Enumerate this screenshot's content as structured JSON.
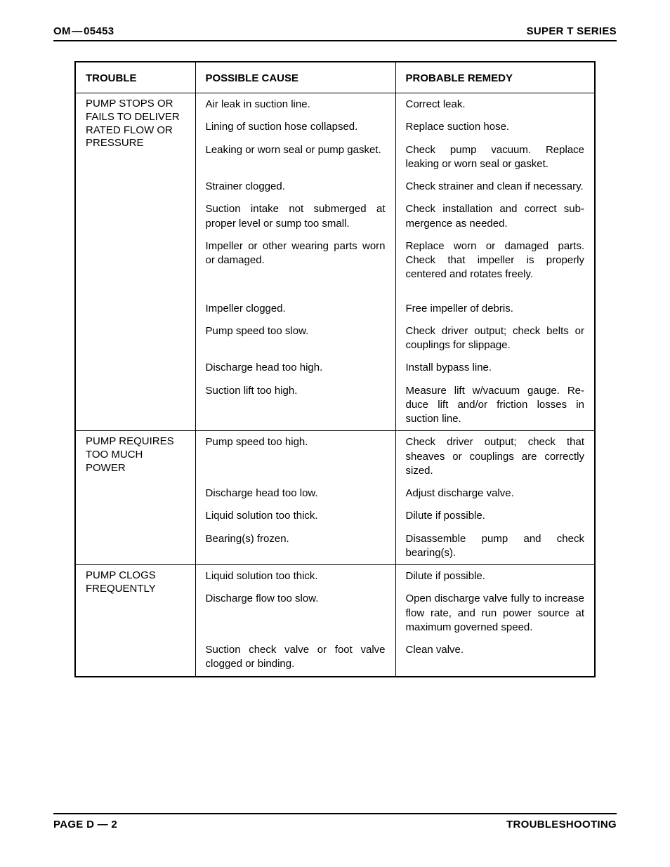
{
  "header": {
    "left": "OM — 05453",
    "right": "SUPER T SERIES"
  },
  "columns": {
    "trouble": "TROUBLE",
    "cause": "POSSIBLE CAUSE",
    "remedy": "PROBABLE REMEDY"
  },
  "sections": [
    {
      "trouble": "PUMP STOPS OR FAILS TO DELIVER RATED FLOW OR PRESSURE",
      "rows": [
        {
          "cause": "Air leak in suction line.",
          "remedy": "Correct leak."
        },
        {
          "cause": "Lining of suction hose collapsed.",
          "remedy": "Replace suction hose."
        },
        {
          "cause": "Leaking or worn seal or pump gasket.",
          "remedy": "Check pump vacuum. Replace leaking or worn seal or gasket."
        },
        {
          "cause": "Strainer clogged.",
          "remedy": "Check strainer and clean if neces­sary."
        },
        {
          "cause": "Suction intake not submerged at proper level or sump too small.",
          "remedy": "Check installation and correct sub­mergence as needed."
        },
        {
          "cause": "Impeller or other wearing parts worn or damaged.",
          "remedy": "Replace worn or damaged parts. Check that impeller is properly centered and rotates freely.",
          "gap": true
        },
        {
          "cause": "Impeller clogged.",
          "remedy": "Free impeller of debris."
        },
        {
          "cause": "Pump speed too slow.",
          "remedy": "Check driver output; check belts or couplings for slippage."
        },
        {
          "cause": "Discharge head too high.",
          "remedy": "Install bypass line."
        },
        {
          "cause": "Suction lift too high.",
          "remedy": "Measure lift w/vacuum gauge. Re­duce lift and/or friction losses in suction line."
        }
      ]
    },
    {
      "trouble": "PUMP REQUIRES TOO MUCH POWER",
      "rows": [
        {
          "cause": "Pump speed too high.",
          "remedy": "Check driver output; check that sheaves or couplings are cor­rectly sized."
        },
        {
          "cause": "Discharge head too low.",
          "remedy": "Adjust discharge valve."
        },
        {
          "cause": "Liquid solution too thick.",
          "remedy": "Dilute if possible."
        },
        {
          "cause": "Bearing(s) frozen.",
          "remedy": "Disassemble pump and check bearing(s)."
        }
      ]
    },
    {
      "trouble": "PUMP CLOGS FREQUENTLY",
      "rows": [
        {
          "cause": "Liquid solution too thick.",
          "remedy": "Dilute if possible."
        },
        {
          "cause": "Discharge flow too slow.",
          "remedy": "Open discharge valve fully to in­crease flow rate, and run power source at maximum governed speed."
        },
        {
          "cause": "Suction check valve or foot valve clogged or binding.",
          "remedy": "Clean valve."
        }
      ]
    }
  ],
  "footer": {
    "left": "PAGE D — 2",
    "right": "TROUBLESHOOTING"
  }
}
